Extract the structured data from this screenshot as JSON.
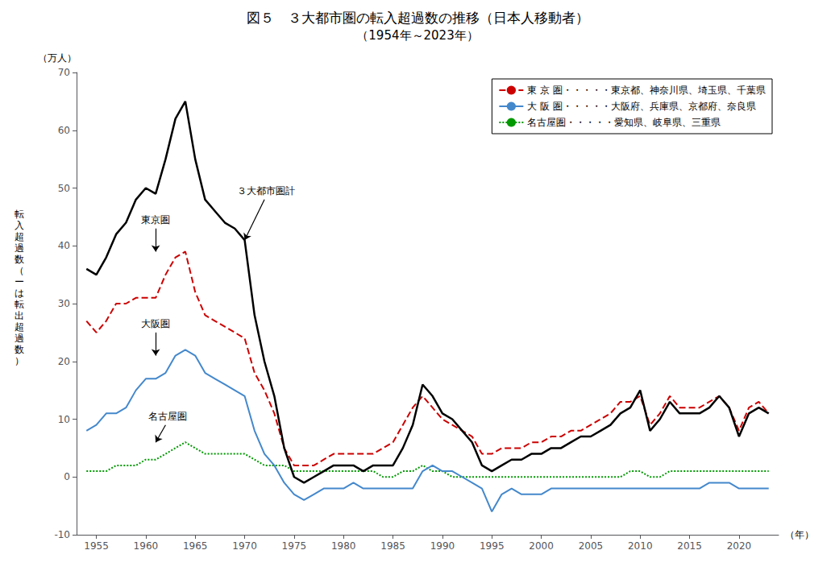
{
  "chart_data": {
    "type": "line",
    "title": "図５　３大都市圏の転入超過数の推移（日本人移動者）",
    "subtitle": "（1954年～2023年）",
    "ylabel": "転\n入\n超\n過\n数\n（\nー\nは\n転\n出\n超\n過\n数\n）",
    "ylabel_unit": "（万人）",
    "xlabel": "（年）",
    "x": [
      1954,
      1955,
      1956,
      1957,
      1958,
      1959,
      1960,
      1961,
      1962,
      1963,
      1964,
      1965,
      1966,
      1967,
      1968,
      1969,
      1970,
      1971,
      1972,
      1973,
      1974,
      1975,
      1976,
      1977,
      1978,
      1979,
      1980,
      1981,
      1982,
      1983,
      1984,
      1985,
      1986,
      1987,
      1988,
      1989,
      1990,
      1991,
      1992,
      1993,
      1994,
      1995,
      1996,
      1997,
      1998,
      1999,
      2000,
      2001,
      2002,
      2003,
      2004,
      2005,
      2006,
      2007,
      2008,
      2009,
      2010,
      2011,
      2012,
      2013,
      2014,
      2015,
      2016,
      2017,
      2018,
      2019,
      2020,
      2021,
      2022,
      2023
    ],
    "series": [
      {
        "color": "#000000",
        "line_style": "solid",
        "values": [
          36,
          35,
          38,
          42,
          44,
          48,
          50,
          49,
          55,
          62,
          65,
          55,
          48,
          46,
          44,
          43,
          41,
          28,
          20,
          14,
          5,
          0,
          -1,
          0,
          1,
          2,
          2,
          2,
          1,
          2,
          2,
          2,
          5,
          9,
          16,
          14,
          11,
          10,
          8,
          6,
          2,
          1,
          2,
          3,
          3,
          4,
          4,
          5,
          5,
          6,
          7,
          7,
          8,
          9,
          11,
          12,
          15,
          8,
          10,
          13,
          11,
          11,
          11,
          12,
          14,
          12,
          7,
          11,
          12,
          11
        ]
      },
      {
        "name": "東 京 圏・・・・・東京都、神奈川県、埼玉県、千葉県",
        "color": "#cc0000",
        "line_style": "dashed",
        "values": [
          27,
          25,
          27,
          30,
          30,
          31,
          31,
          31,
          35,
          38,
          39,
          32,
          28,
          27,
          26,
          25,
          24,
          18,
          15,
          11,
          5,
          2,
          2,
          2,
          3,
          4,
          4,
          4,
          4,
          4,
          5,
          6,
          9,
          12,
          14,
          12,
          10,
          9,
          8,
          7,
          4,
          4,
          5,
          5,
          5,
          6,
          6,
          7,
          7,
          8,
          8,
          9,
          10,
          11,
          13,
          13,
          14,
          9,
          11,
          14,
          12,
          12,
          12,
          13,
          14,
          12,
          8,
          12,
          13,
          11
        ]
      },
      {
        "name": "大 阪 圏・・・・・大阪府、兵庫県、京都府、奈良県",
        "color": "#4488cc",
        "line_style": "solid",
        "values": [
          8,
          9,
          11,
          11,
          12,
          15,
          17,
          17,
          18,
          21,
          22,
          21,
          18,
          17,
          16,
          15,
          14,
          8,
          4,
          2,
          -1,
          -3,
          -4,
          -3,
          -2,
          -2,
          -2,
          -1,
          -2,
          -2,
          -2,
          -2,
          -2,
          -2,
          1,
          2,
          1,
          1,
          0,
          -1,
          -2,
          -6,
          -3,
          -2,
          -3,
          -3,
          -3,
          -2,
          -2,
          -2,
          -2,
          -2,
          -2,
          -2,
          -2,
          -2,
          -2,
          -2,
          -2,
          -2,
          -2,
          -2,
          -2,
          -1,
          -1,
          -1,
          -2,
          -2,
          -2,
          -2
        ]
      },
      {
        "name": "名古屋圏・・・・・愛知県、岐阜県、三重県",
        "color": "#009900",
        "line_style": "dotted",
        "values": [
          1,
          1,
          1,
          2,
          2,
          2,
          3,
          3,
          4,
          5,
          6,
          5,
          4,
          4,
          4,
          4,
          4,
          3,
          2,
          2,
          2,
          1,
          1,
          1,
          1,
          1,
          1,
          1,
          1,
          1,
          0,
          0,
          1,
          1,
          2,
          1,
          1,
          0,
          0,
          0,
          0,
          0,
          0,
          0,
          0,
          0,
          0,
          0,
          0,
          0,
          0,
          0,
          0,
          0,
          0,
          1,
          1,
          0,
          0,
          1,
          1,
          1,
          1,
          1,
          1,
          1,
          1,
          1,
          1,
          1
        ]
      }
    ],
    "marker": "none",
    "xlim": [
      1953,
      2024
    ],
    "xticks": [
      1955,
      1960,
      1965,
      1970,
      1975,
      1980,
      1985,
      1990,
      1995,
      2000,
      2005,
      2010,
      2015,
      2020
    ],
    "ylim": [
      -10,
      70
    ],
    "yticks": [
      -10,
      0,
      10,
      20,
      30,
      40,
      50,
      60,
      70
    ],
    "grid": false,
    "legend": "upper right",
    "annotations": [
      {
        "text": "３大都市圏計",
        "xy": [
          1970,
          41
        ],
        "xytext": [
          1972,
          48
        ]
      },
      {
        "text": "東京圏",
        "xy": [
          1961,
          39
        ],
        "xytext": [
          1961,
          43
        ]
      },
      {
        "text": "大阪圏",
        "xy": [
          1961,
          21
        ],
        "xytext": [
          1961,
          25
        ]
      },
      {
        "text": "名古屋圏",
        "xy": [
          1961,
          6
        ],
        "xytext": [
          1962,
          9
        ]
      }
    ]
  }
}
